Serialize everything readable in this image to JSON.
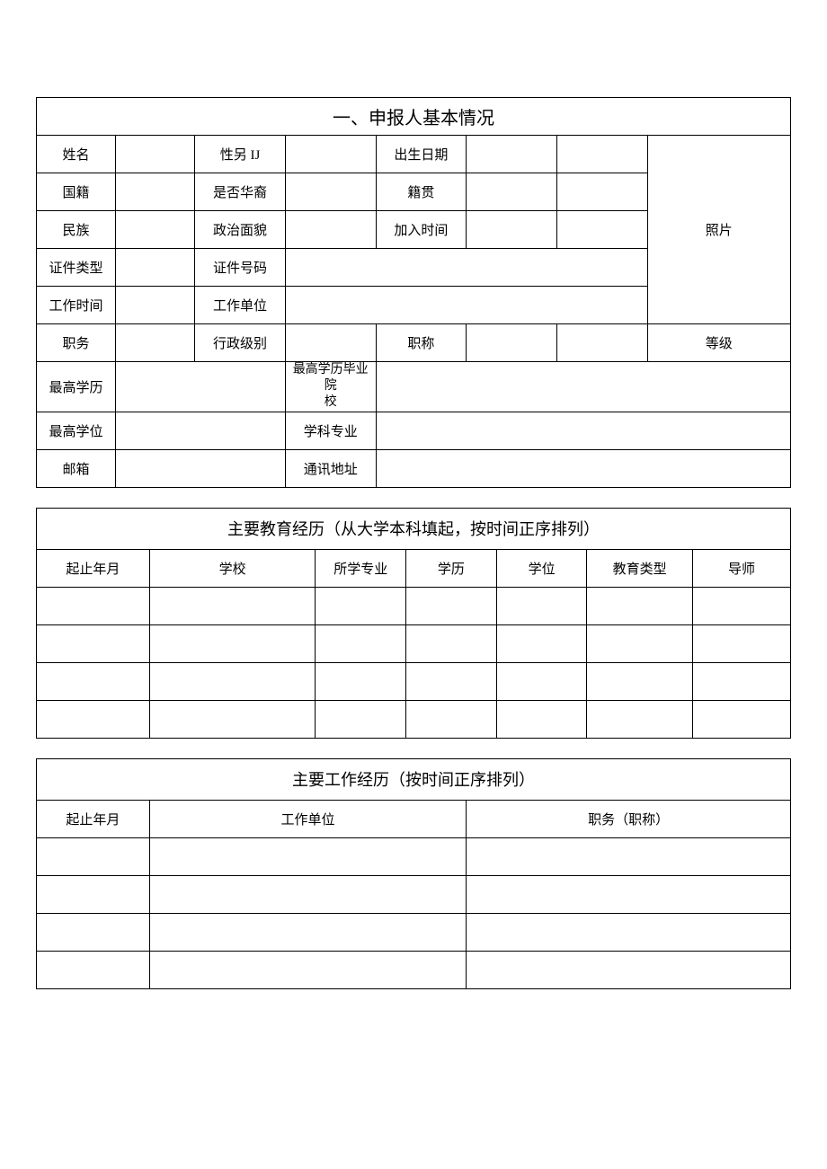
{
  "section1": {
    "title": "一、申报人基本情况",
    "labels": {
      "name": "姓名",
      "gender": "性另 IJ",
      "birthdate": "出生日期",
      "nationality": "国籍",
      "is_chinese_descent": "是否华裔",
      "origin": "籍贯",
      "ethnicity": "民族",
      "political_status": "政治面貌",
      "join_date": "加入时间",
      "photo": "照片",
      "id_type": "证件类型",
      "id_number": "证件号码",
      "work_date": "工作时间",
      "work_unit": "工作单位",
      "position": "职务",
      "admin_rank": "行政级别",
      "title": "职称",
      "level": "等级",
      "highest_edu": "最高学历",
      "highest_edu_school": "最高学历毕业院\n校",
      "highest_degree": "最高学位",
      "subject_major": "学科专业",
      "email": "邮箱",
      "address": "通讯地址"
    },
    "values": {
      "name": "",
      "gender": "",
      "birthdate": "",
      "nationality": "",
      "is_chinese_descent": "",
      "origin": "",
      "ethnicity": "",
      "political_status": "",
      "join_date": "",
      "id_type": "",
      "id_number": "",
      "work_date": "",
      "work_unit": "",
      "position": "",
      "admin_rank": "",
      "title": "",
      "level": "",
      "highest_edu": "",
      "highest_edu_school": "",
      "highest_degree": "",
      "subject_major": "",
      "email": "",
      "address": ""
    }
  },
  "section2": {
    "title": "主要教育经历（从大学本科填起，按时间正序排列）",
    "columns": {
      "period": "起止年月",
      "school": "学校",
      "major": "所学专业",
      "education": "学历",
      "degree": "学位",
      "edu_type": "教育类型",
      "advisor": "导师"
    },
    "rows": [
      {
        "period": "",
        "school": "",
        "major": "",
        "education": "",
        "degree": "",
        "edu_type": "",
        "advisor": ""
      },
      {
        "period": "",
        "school": "",
        "major": "",
        "education": "",
        "degree": "",
        "edu_type": "",
        "advisor": ""
      },
      {
        "period": "",
        "school": "",
        "major": "",
        "education": "",
        "degree": "",
        "edu_type": "",
        "advisor": ""
      },
      {
        "period": "",
        "school": "",
        "major": "",
        "education": "",
        "degree": "",
        "edu_type": "",
        "advisor": ""
      }
    ]
  },
  "section3": {
    "title": "主要工作经历（按时间正序排列）",
    "columns": {
      "period": "起止年月",
      "work_unit": "工作单位",
      "position": "职务（职称）"
    },
    "rows": [
      {
        "period": "",
        "work_unit": "",
        "position": ""
      },
      {
        "period": "",
        "work_unit": "",
        "position": ""
      },
      {
        "period": "",
        "work_unit": "",
        "position": ""
      },
      {
        "period": "",
        "work_unit": "",
        "position": ""
      }
    ]
  },
  "style": {
    "border_color": "#000000",
    "background_color": "#ffffff",
    "title_fontsize": 20,
    "label_fontsize": 15,
    "font_family": "SimSun"
  }
}
